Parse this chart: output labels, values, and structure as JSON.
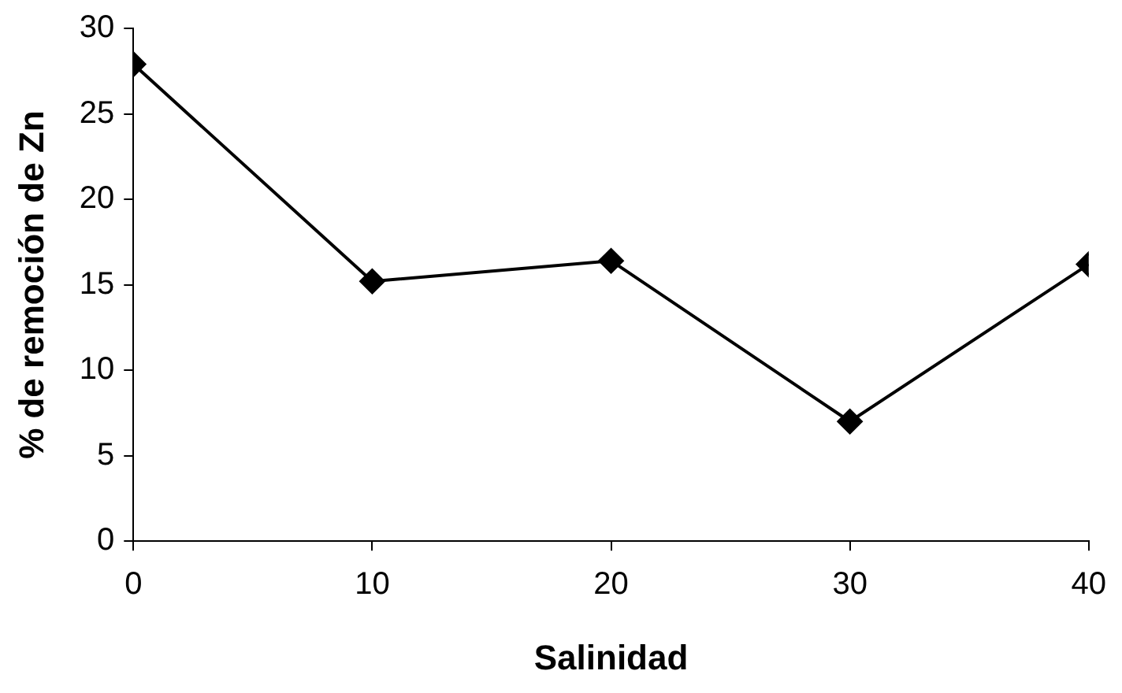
{
  "chart_data": {
    "type": "line",
    "xlabel": "Salinidad",
    "ylabel": "% de remoción de Zn",
    "x": [
      0,
      10,
      20,
      30,
      40
    ],
    "series": [
      {
        "color": "#000000",
        "values": [
          27.9,
          15.2,
          16.4,
          7.0,
          16.2
        ]
      }
    ],
    "xlim": [
      0,
      40
    ],
    "xticks": [
      0,
      10,
      20,
      30,
      40
    ],
    "ylim": [
      0,
      30
    ],
    "yticks": [
      0,
      5,
      10,
      15,
      20,
      25,
      30
    ],
    "grid": false,
    "legend": false,
    "marker": "diamond",
    "line_style": "solid"
  }
}
